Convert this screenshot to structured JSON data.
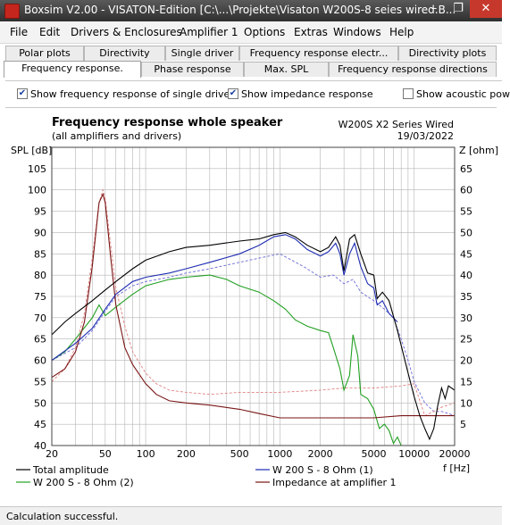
{
  "window": {
    "title": "Boxsim V2.00 - VISATON-Edition [C:\\...\\Projekte\\Visaton W200S-8 seies wired.B...",
    "minimize": "–",
    "restore": "❐",
    "close": "✕"
  },
  "menu": [
    "File",
    "Edit",
    "Drivers & Enclosures",
    "Amplifier 1",
    "Options",
    "Extras",
    "Windows",
    "Help"
  ],
  "tabs_row1": [
    "Polar plots",
    "Directivity",
    "Single driver",
    "Frequency response electr...",
    "Directivity plots"
  ],
  "tabs_row2": [
    "Frequency response.",
    "Phase response",
    "Max. SPL",
    "Frequency response directions"
  ],
  "active_tab": "Frequency response.",
  "options": {
    "show_single_driver": {
      "label": "Show frequency response of single driver",
      "checked": true
    },
    "show_impedance": {
      "label": "Show impedance response",
      "checked": true
    },
    "show_acoustic": {
      "label": "Show acoustic pow",
      "checked": false
    }
  },
  "status": "Calculation successful.",
  "chart_data": {
    "type": "line",
    "title": "Frequency response whole speaker",
    "subtitle": "(all amplifiers and drivers)",
    "project": "W200S X2 Series Wired",
    "date": "19/03/2022",
    "ylabel_left": "SPL [dB]",
    "ylabel_right": "Z [ohm]",
    "xlabel": "f [Hz]",
    "x_scale": "log",
    "xlim": [
      20,
      20000
    ],
    "ylim_left": [
      40,
      110
    ],
    "ylim_right": [
      0,
      70
    ],
    "x_ticks": [
      20,
      50,
      100,
      200,
      500,
      1000,
      2000,
      5000,
      10000,
      20000
    ],
    "x_tick_labels": [
      "20",
      "50",
      "100",
      "200",
      "500",
      "1000",
      "2000",
      "5000",
      "10000",
      "20000"
    ],
    "y_ticks_left": [
      40,
      45,
      50,
      55,
      60,
      65,
      70,
      75,
      80,
      85,
      90,
      95,
      100,
      105
    ],
    "y_ticks_right": [
      5,
      10,
      15,
      20,
      25,
      30,
      35,
      40,
      45,
      50,
      55,
      60,
      65
    ],
    "grid": true,
    "series": [
      {
        "name": "Total amplitude",
        "color": "#000000",
        "style": "solid",
        "axis": "left",
        "x": [
          20,
          25,
          30,
          40,
          50,
          60,
          80,
          100,
          150,
          200,
          300,
          500,
          700,
          900,
          1100,
          1300,
          1600,
          2000,
          2300,
          2600,
          2800,
          3000,
          3300,
          3600,
          4000,
          4500,
          5000,
          5300,
          5800,
          6500,
          7500,
          9000,
          10000,
          11000,
          12000,
          13000,
          14000,
          15000,
          16000,
          17000,
          18000,
          20000
        ],
        "y": [
          66,
          69,
          71,
          74,
          76.5,
          78.5,
          81.5,
          83.5,
          85.5,
          86.5,
          87,
          88,
          88.5,
          89.5,
          90,
          89,
          87,
          85.5,
          86.5,
          89,
          87,
          81,
          88.5,
          89.5,
          85,
          80.5,
          80,
          74.5,
          76,
          74,
          67,
          57,
          51.5,
          47,
          44,
          41.5,
          44,
          49.5,
          53.5,
          51,
          54,
          53
        ]
      },
      {
        "name": "W 200 S - 8 Ohm (1)",
        "color": "#1c2bb0",
        "style": "solid",
        "axis": "left",
        "x": [
          20,
          30,
          40,
          50,
          60,
          80,
          100,
          150,
          200,
          300,
          500,
          700,
          900,
          1100,
          1300,
          1600,
          2000,
          2300,
          2600,
          2800,
          3000,
          3300,
          3600,
          4000,
          4500,
          5000,
          5300,
          5800,
          6500,
          7500
        ],
        "y": [
          60,
          64,
          67.5,
          72,
          75.5,
          78.5,
          79.5,
          80.5,
          81.5,
          83,
          85,
          87,
          89,
          89.5,
          88.5,
          86,
          84.5,
          85.5,
          87.5,
          85,
          80,
          85,
          87.5,
          82,
          78,
          77,
          73,
          74,
          71,
          69
        ]
      },
      {
        "name": "W 200 S - 8 Ohm (2)",
        "color": "#22a022",
        "style": "solid",
        "axis": "left",
        "x": [
          20,
          25,
          30,
          40,
          45,
          50,
          60,
          80,
          100,
          150,
          200,
          300,
          400,
          500,
          700,
          900,
          1100,
          1300,
          1600,
          2000,
          2300,
          2500,
          2800,
          3000,
          3300,
          3500,
          3800,
          4000,
          4500,
          5000,
          5500,
          6000,
          6500,
          7000,
          7500,
          8000,
          20000
        ],
        "y": [
          60,
          62,
          65,
          70,
          73,
          70.5,
          72.5,
          75.5,
          77.5,
          79,
          79.5,
          80,
          79,
          77.5,
          76,
          74,
          72,
          69.5,
          68,
          67,
          66.5,
          63,
          58,
          53,
          56.5,
          66,
          61,
          52,
          51,
          48.5,
          44,
          45,
          43.5,
          40.5,
          42,
          40,
          40
        ]
      },
      {
        "name": "Impedance at amplifier 1",
        "color": "#7a1515",
        "style": "solid",
        "axis": "right",
        "x": [
          20,
          25,
          30,
          35,
          40,
          45,
          48,
          50,
          55,
          60,
          70,
          80,
          100,
          120,
          150,
          200,
          300,
          500,
          700,
          1000,
          1500,
          2000,
          3000,
          5000,
          8000,
          12000,
          16000,
          20000
        ],
        "y": [
          16,
          18,
          22,
          29,
          42,
          57,
          59,
          57,
          44,
          33,
          23,
          19,
          14.5,
          12,
          10.5,
          10,
          9.5,
          8.5,
          7.5,
          6.5,
          6.5,
          6.5,
          6.5,
          6.5,
          7,
          7,
          7,
          7
        ]
      },
      {
        "name": "",
        "color": "#6a6ad8",
        "style": "dashed",
        "axis": "left",
        "x": [
          20,
          30,
          40,
          50,
          60,
          80,
          100,
          150,
          200,
          300,
          500,
          700,
          1000,
          1500,
          2000,
          2500,
          3000,
          3500,
          4000,
          5000,
          6000,
          7000,
          8000,
          9000,
          10000,
          12000,
          14000,
          16000,
          18000,
          20000
        ],
        "y": [
          60,
          63,
          67,
          71.5,
          75,
          77.5,
          78.5,
          79.5,
          80.5,
          81.5,
          83,
          84,
          85,
          82,
          79.5,
          80,
          78,
          79,
          76,
          74,
          72,
          70,
          65,
          60,
          55,
          50,
          48,
          48,
          47.5,
          47
        ]
      },
      {
        "name": "",
        "color": "#e08080",
        "style": "dashed",
        "axis": "right",
        "x": [
          20,
          25,
          30,
          35,
          40,
          45,
          48,
          50,
          55,
          60,
          70,
          80,
          100,
          120,
          150,
          200,
          300,
          500,
          1000,
          2000,
          3000,
          5000,
          8000,
          10000,
          12000,
          14000,
          16000,
          20000
        ],
        "y": [
          15,
          18,
          23,
          31,
          44,
          57,
          60,
          58,
          47,
          37,
          28,
          22,
          17,
          14.5,
          13,
          12.5,
          12,
          12.5,
          12.5,
          13,
          13.5,
          13.5,
          14,
          14.5,
          7,
          8,
          9,
          10
        ]
      }
    ]
  }
}
